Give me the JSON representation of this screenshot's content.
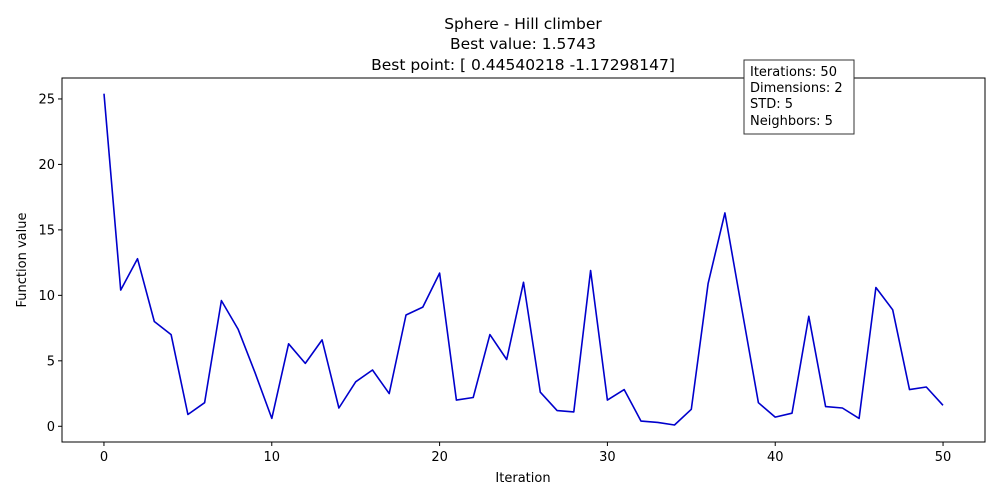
{
  "chart_data": {
    "type": "line",
    "title_lines": [
      "Sphere - Hill climber",
      "Best value: 1.5743",
      "Best point: [ 0.44540218 -1.17298147]"
    ],
    "xlabel": "Iteration",
    "ylabel": "Function value",
    "xlim": [
      -2.5,
      52.5
    ],
    "ylim": [
      -1.2,
      26.6
    ],
    "xticks": [
      0,
      10,
      20,
      30,
      40,
      50
    ],
    "yticks": [
      0,
      5,
      10,
      15,
      20,
      25
    ],
    "grid": false,
    "series": [
      {
        "color": "#0000cc",
        "x": [
          0,
          1,
          2,
          3,
          4,
          5,
          6,
          7,
          8,
          9,
          10,
          11,
          12,
          13,
          14,
          15,
          16,
          17,
          18,
          19,
          20,
          21,
          22,
          23,
          24,
          25,
          26,
          27,
          28,
          29,
          30,
          31,
          32,
          33,
          34,
          35,
          36,
          37,
          38,
          39,
          40,
          41,
          42,
          43,
          44,
          45,
          46,
          47,
          48,
          49,
          50
        ],
        "y": [
          25.4,
          10.4,
          12.8,
          8.0,
          7.0,
          0.9,
          1.8,
          9.6,
          7.4,
          4.1,
          0.6,
          6.3,
          4.8,
          6.6,
          1.4,
          3.4,
          4.3,
          2.5,
          8.5,
          9.1,
          11.7,
          2.0,
          2.2,
          7.0,
          5.1,
          11.0,
          2.6,
          1.2,
          1.1,
          11.9,
          2.0,
          2.8,
          0.4,
          0.3,
          0.1,
          1.3,
          10.9,
          16.3,
          9.0,
          1.8,
          0.7,
          1.0,
          8.4,
          1.5,
          1.4,
          0.6,
          10.6,
          8.9,
          2.8,
          3.0,
          1.6
        ]
      }
    ],
    "info_box": {
      "lines": [
        "Iterations: 50",
        "Dimensions: 2",
        "STD: 5",
        "Neighbors: 5"
      ],
      "placement": "top-right"
    }
  }
}
